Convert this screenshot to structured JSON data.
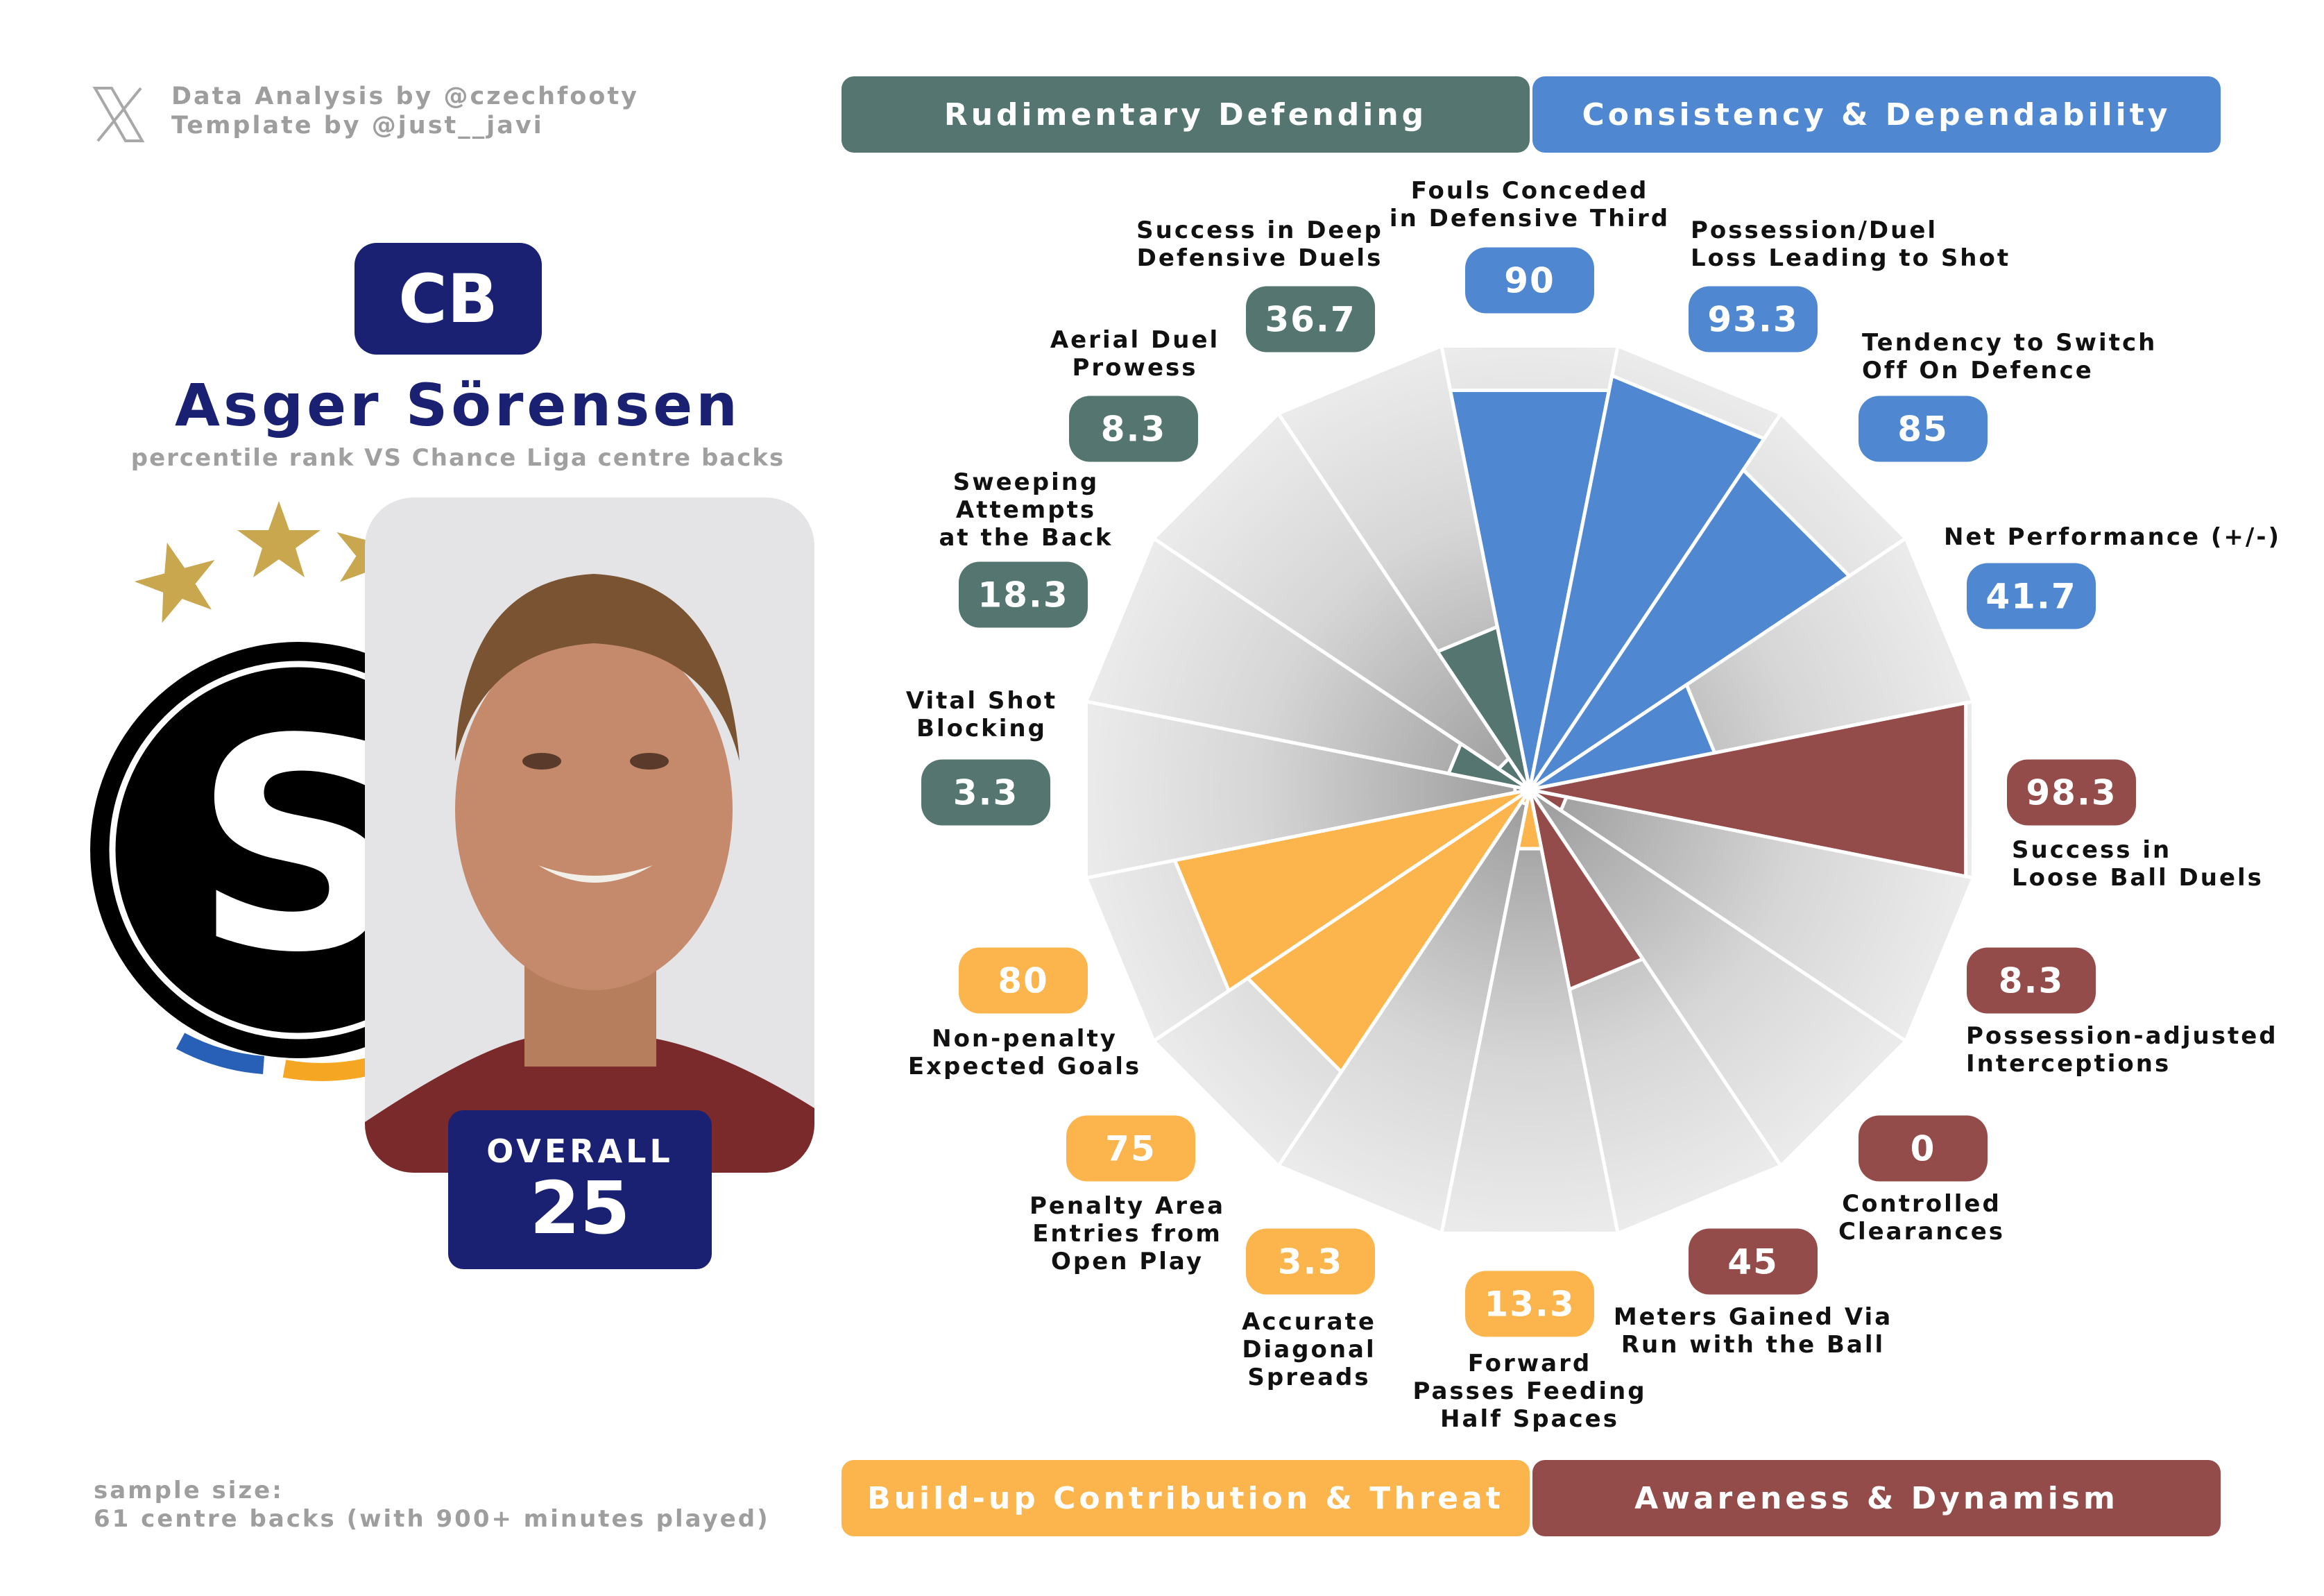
{
  "credits": {
    "line1": "Data Analysis by @czechfooty",
    "line2": "Template by @just__javi"
  },
  "player": {
    "position": "CB",
    "name": "Asger Sörensen",
    "subtitle": "percentile rank VS Chance Liga centre backs",
    "overall_label": "OVERALL",
    "overall_value": "25"
  },
  "sample": {
    "line1": "sample size:",
    "line2": "61 centre backs (with 900+ minutes played)"
  },
  "colors": {
    "defending": "#557570",
    "consistency": "#4f88d0",
    "awareness": "#944c4a",
    "buildup": "#fbb54c",
    "navy": "#1a2173"
  },
  "chart_data": {
    "type": "pie",
    "subtype": "pizza",
    "range": [
      0,
      100
    ],
    "categories": [
      {
        "name": "Rudimentary Defending",
        "color": "#557570"
      },
      {
        "name": "Consistency & Dependability",
        "color": "#4f88d0"
      },
      {
        "name": "Build-up Contribution & Threat",
        "color": "#fbb54c"
      },
      {
        "name": "Awareness & Dynamism",
        "color": "#944c4a"
      }
    ],
    "metrics": [
      {
        "label": "Fouls Conceded\nin Defensive Third",
        "value": 90,
        "display": "90",
        "group": 1
      },
      {
        "label": "Possession/Duel\nLoss Leading to Shot",
        "value": 93.3,
        "display": "93.3",
        "group": 1
      },
      {
        "label": "Tendency to Switch\nOff On Defence",
        "value": 85,
        "display": "85",
        "group": 1
      },
      {
        "label": "Net Performance (+/-)",
        "value": 41.7,
        "display": "41.7",
        "group": 1
      },
      {
        "label": "Success in\nLoose Ball Duels",
        "value": 98.3,
        "display": "98.3",
        "group": 3
      },
      {
        "label": "Possession-adjusted\nInterceptions",
        "value": 8.3,
        "display": "8.3",
        "group": 3
      },
      {
        "label": "Controlled\nClearances",
        "value": 0,
        "display": "0",
        "group": 3
      },
      {
        "label": "Meters Gained Via\nRun with the Ball",
        "value": 45,
        "display": "45",
        "group": 3
      },
      {
        "label": "Forward\nPasses Feeding\nHalf Spaces",
        "value": 13.3,
        "display": "13.3",
        "group": 2
      },
      {
        "label": "Accurate\nDiagonal\nSpreads",
        "value": 3.3,
        "display": "3.3",
        "group": 2
      },
      {
        "label": "Penalty Area\nEntries from\nOpen Play",
        "value": 75,
        "display": "75",
        "group": 2
      },
      {
        "label": "Non-penalty\nExpected Goals",
        "value": 80,
        "display": "80",
        "group": 2
      },
      {
        "label": "Vital Shot\nBlocking",
        "value": 3.3,
        "display": "3.3",
        "group": 0
      },
      {
        "label": "Sweeping\nAttempts\nat the Back",
        "value": 18.3,
        "display": "18.3",
        "group": 0
      },
      {
        "label": "Aerial Duel\nProwess",
        "value": 8.3,
        "display": "8.3",
        "group": 0
      },
      {
        "label": "Success in Deep\nDefensive Duels",
        "value": 36.7,
        "display": "36.7",
        "group": 0
      }
    ]
  }
}
